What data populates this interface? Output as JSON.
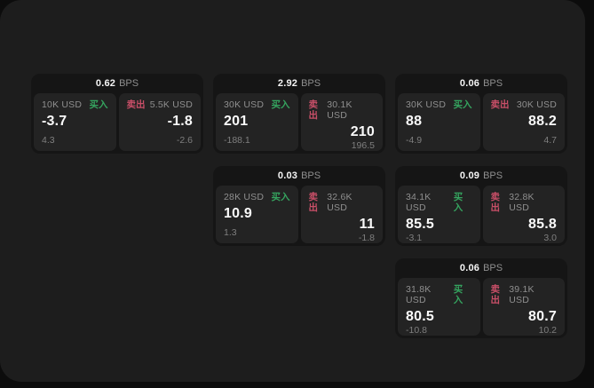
{
  "labels": {
    "buy": "买入",
    "sell": "卖出",
    "bps_unit": "BPS"
  },
  "colors": {
    "page_background": "#0c0c0c",
    "panel_background": "#1d1d1d",
    "card_background": "#151515",
    "tile_background": "#232323",
    "buy_green": "#35a45f",
    "sell_red": "#c94f68",
    "text_primary": "#f5f5f5",
    "text_muted": "#8f8f8f"
  },
  "cards": [
    {
      "bps": "0.62",
      "buy": {
        "amount": "10K USD",
        "price": "-3.7",
        "change": "4.3"
      },
      "sell": {
        "amount": "5.5K USD",
        "price": "-1.8",
        "change": "-2.6"
      }
    },
    {
      "bps": "2.92",
      "buy": {
        "amount": "30K USD",
        "price": "201",
        "change": "-188.1"
      },
      "sell": {
        "amount": "30.1K USD",
        "price": "210",
        "change": "196.5"
      }
    },
    {
      "bps": "0.06",
      "buy": {
        "amount": "30K USD",
        "price": "88",
        "change": "-4.9"
      },
      "sell": {
        "amount": "30K USD",
        "price": "88.2",
        "change": "4.7"
      }
    },
    {
      "bps": "0.03",
      "buy": {
        "amount": "28K USD",
        "price": "10.9",
        "change": "1.3"
      },
      "sell": {
        "amount": "32.6K USD",
        "price": "11",
        "change": "-1.8"
      }
    },
    {
      "bps": "0.09",
      "buy": {
        "amount": "34.1K USD",
        "price": "85.5",
        "change": "-3.1"
      },
      "sell": {
        "amount": "32.8K USD",
        "price": "85.8",
        "change": "3.0"
      }
    },
    {
      "bps": "0.06",
      "buy": {
        "amount": "31.8K USD",
        "price": "80.5",
        "change": "-10.8"
      },
      "sell": {
        "amount": "39.1K USD",
        "price": "80.7",
        "change": "10.2"
      }
    }
  ]
}
